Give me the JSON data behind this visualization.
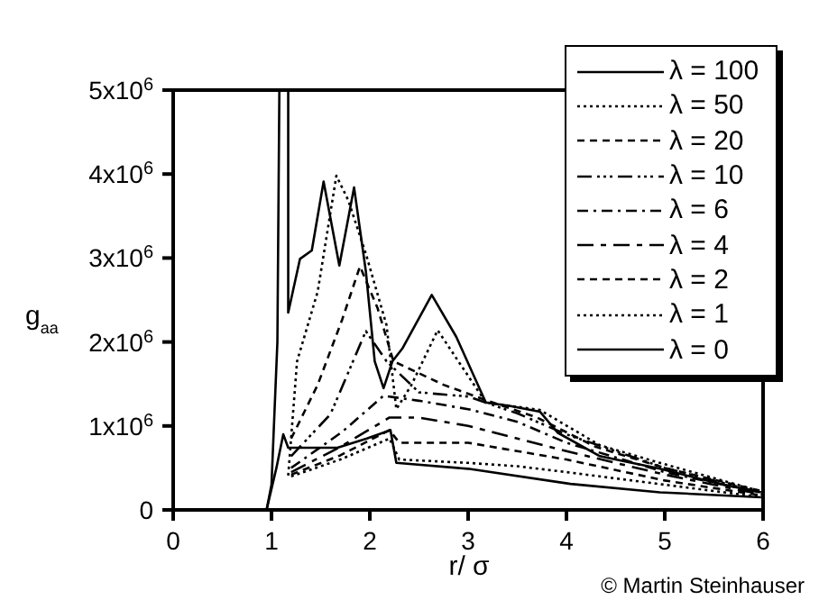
{
  "chart_data": {
    "type": "line",
    "xlabel": "r/ σ",
    "ylabel": "g$_{aa}$",
    "xlim": [
      0,
      6
    ],
    "xticks": [
      0,
      1,
      2,
      3,
      4,
      5,
      6
    ],
    "ylim": [
      0,
      5000000
    ],
    "yticks": [
      0,
      {
        "value": 1000000,
        "label": "1x10$^{6}$"
      },
      {
        "value": 2000000,
        "label": "2x10$^{6}$"
      },
      {
        "value": 3000000,
        "label": "3x10$^{6}$"
      },
      {
        "value": 4000000,
        "label": "4x10$^{6}$"
      },
      {
        "value": 5000000,
        "label": "5x10$^{6}$"
      }
    ],
    "legend": "top right",
    "marker": "none",
    "annotations": [
      "© Martin Steinhauser"
    ],
    "series": [
      {
        "name": "λ = 100",
        "color": "#000000",
        "line_style": "solid",
        "x": [
          0.95,
          1.0,
          1.06,
          1.08,
          1.17,
          1.17,
          1.29,
          1.41,
          1.53,
          1.69,
          1.84,
          1.96,
          2.05,
          2.14,
          2.23,
          2.33,
          2.63,
          2.88,
          3.18,
          3.42,
          3.73,
          3.91,
          4.34,
          4.95,
          5.56,
          5.98
        ],
        "values": [
          0,
          300000,
          2000000,
          5000000,
          5000000,
          2350000,
          2990000,
          3090000,
          3910000,
          2910000,
          3840000,
          2840000,
          1770000,
          1450000,
          1770000,
          1920000,
          2560000,
          2060000,
          1280000,
          1240000,
          1170000,
          920000,
          640000,
          490000,
          310000,
          210000
        ]
      },
      {
        "name": "λ = 50",
        "color": "#000000",
        "line_style": "dotted",
        "x": [
          1.17,
          1.26,
          1.47,
          1.66,
          1.78,
          1.96,
          2.17,
          2.27,
          2.42,
          2.69,
          3.18,
          3.73,
          4.34,
          4.95,
          5.98
        ],
        "values": [
          410000,
          1770000,
          2600000,
          3980000,
          3690000,
          3050000,
          2200000,
          1200000,
          1480000,
          2140000,
          1280000,
          1190000,
          770000,
          560000,
          220000
        ]
      },
      {
        "name": "λ = 20",
        "color": "#000000",
        "line_style": "dashed",
        "x": [
          1.2,
          1.47,
          1.72,
          1.9,
          2.08,
          2.24,
          2.75,
          3.2,
          3.7,
          4.3,
          5.0,
          6.0
        ],
        "values": [
          850000,
          1490000,
          2270000,
          2900000,
          2400000,
          1770000,
          1490000,
          1300000,
          1100000,
          750000,
          500000,
          220000
        ]
      },
      {
        "name": "λ = 10",
        "color": "#000000",
        "line_style": "dashdotdot",
        "x": [
          1.2,
          1.6,
          1.96,
          2.17,
          2.5,
          3.0,
          3.5,
          4.0,
          5.0,
          6.0
        ],
        "values": [
          640000,
          1140000,
          2130000,
          1770000,
          1400000,
          1350000,
          1150000,
          900000,
          500000,
          200000
        ]
      },
      {
        "name": "λ = 6",
        "color": "#000000",
        "line_style": "dashdot",
        "x": [
          1.2,
          1.72,
          2.14,
          2.5,
          3.0,
          3.5,
          4.0,
          5.0,
          6.0
        ],
        "values": [
          500000,
          930000,
          1360000,
          1300000,
          1200000,
          1050000,
          800000,
          450000,
          200000
        ]
      },
      {
        "name": "λ = 4",
        "color": "#000000",
        "line_style": "longdash",
        "x": [
          1.2,
          1.7,
          2.2,
          2.5,
          3.0,
          3.5,
          4.0,
          5.0,
          6.0
        ],
        "values": [
          450000,
          750000,
          1100000,
          1100000,
          1000000,
          850000,
          700000,
          420000,
          180000
        ]
      },
      {
        "name": "λ = 2",
        "color": "#000000",
        "line_style": "dashed",
        "x": [
          1.2,
          1.7,
          2.2,
          2.3,
          2.5,
          3.0,
          3.5,
          4.0,
          5.0,
          6.0
        ],
        "values": [
          420000,
          650000,
          950000,
          800000,
          800000,
          800000,
          700000,
          600000,
          350000,
          170000
        ]
      },
      {
        "name": "λ = 1",
        "color": "#000000",
        "line_style": "dotted",
        "x": [
          1.2,
          1.7,
          2.2,
          2.3,
          3.0,
          3.5,
          4.0,
          5.0,
          6.0
        ],
        "values": [
          400000,
          600000,
          850000,
          600000,
          560000,
          520000,
          450000,
          300000,
          150000
        ]
      },
      {
        "name": "λ = 0",
        "color": "#000000",
        "line_style": "solid",
        "x": [
          0.95,
          1.05,
          1.12,
          1.17,
          1.67,
          1.97,
          2.21,
          2.27,
          3.0,
          4.04,
          4.95,
          5.98
        ],
        "values": [
          0,
          500000,
          900000,
          740000,
          740000,
          850000,
          950000,
          560000,
          490000,
          310000,
          210000,
          150000
        ]
      }
    ]
  }
}
